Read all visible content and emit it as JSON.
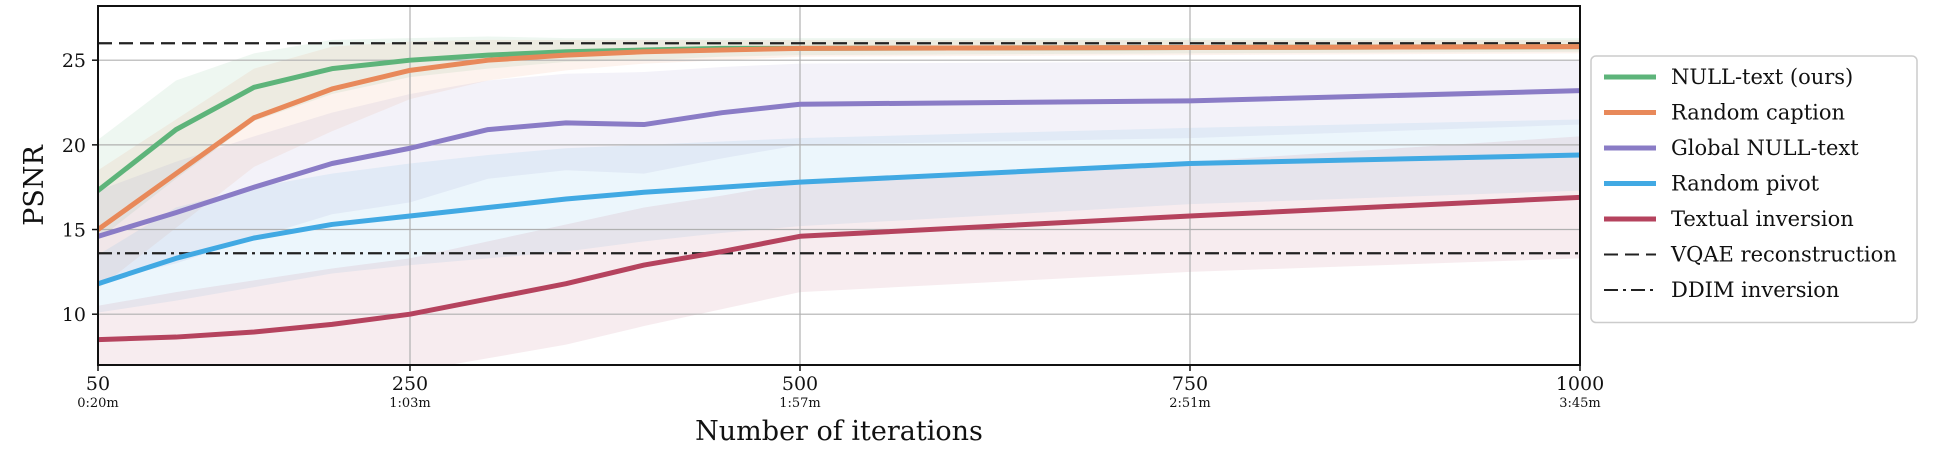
{
  "chart_data": {
    "type": "line",
    "xlabel": "Number of iterations",
    "ylabel": "PSNR",
    "xlim": [
      50,
      1000
    ],
    "ylim": [
      7,
      28.2
    ],
    "grid": true,
    "legend_position": "right-outside",
    "x_ticks": [
      {
        "value": 50,
        "label": "50",
        "sub": "0:20m"
      },
      {
        "value": 250,
        "label": "250",
        "sub": "1:03m"
      },
      {
        "value": 500,
        "label": "500",
        "sub": "1:57m"
      },
      {
        "value": 750,
        "label": "750",
        "sub": "2:51m"
      },
      {
        "value": 1000,
        "label": "1000",
        "sub": "3:45m"
      }
    ],
    "y_ticks": [
      {
        "value": 10,
        "label": "10"
      },
      {
        "value": 15,
        "label": "15"
      },
      {
        "value": 20,
        "label": "20"
      },
      {
        "value": 25,
        "label": "25"
      }
    ],
    "series": [
      {
        "name": "NULL-text (ours)",
        "color": "#5db47a",
        "x": [
          50,
          100,
          150,
          200,
          250,
          300,
          350,
          400,
          450,
          500,
          750,
          1000
        ],
        "y": [
          17.3,
          20.9,
          23.4,
          24.5,
          25.0,
          25.3,
          25.5,
          25.6,
          25.7,
          25.7,
          25.75,
          25.8
        ],
        "band_upper": [
          20.3,
          23.8,
          25.4,
          26.2,
          26.3,
          26.4,
          26.3,
          26.3,
          26.3,
          26.3,
          26.3,
          26.3
        ],
        "band_lower": [
          14.4,
          18.0,
          21.4,
          23.0,
          24.0,
          24.5,
          24.9,
          25.0,
          25.2,
          25.3,
          25.4,
          25.5
        ]
      },
      {
        "name": "Random caption",
        "color": "#e8895a",
        "x": [
          50,
          100,
          150,
          200,
          250,
          300,
          350,
          400,
          450,
          500,
          750,
          1000
        ],
        "y": [
          15.0,
          18.3,
          21.6,
          23.3,
          24.4,
          25.0,
          25.3,
          25.5,
          25.6,
          25.7,
          25.75,
          25.8
        ],
        "band_upper": [
          18.5,
          21.5,
          24.5,
          25.8,
          26.1,
          26.2,
          26.2,
          26.2,
          26.2,
          26.2,
          26.2,
          26.2
        ],
        "band_lower": [
          11.5,
          15.1,
          18.7,
          20.8,
          22.7,
          23.8,
          24.4,
          24.8,
          25.0,
          25.2,
          25.3,
          25.4
        ]
      },
      {
        "name": "Global NULL-text",
        "color": "#8a7cc6",
        "x": [
          50,
          100,
          150,
          200,
          250,
          300,
          350,
          400,
          450,
          500,
          750,
          1000
        ],
        "y": [
          14.6,
          16.0,
          17.5,
          18.9,
          19.8,
          20.9,
          21.3,
          21.2,
          21.9,
          22.4,
          22.6,
          23.2
        ],
        "band_upper": [
          17.3,
          19.0,
          20.5,
          21.9,
          23.0,
          23.8,
          24.2,
          24.3,
          24.6,
          24.8,
          24.9,
          25.0
        ],
        "band_lower": [
          11.9,
          13.0,
          14.5,
          15.9,
          16.6,
          18.0,
          18.5,
          18.3,
          19.2,
          20.0,
          20.4,
          21.2
        ]
      },
      {
        "name": "Random pivot",
        "color": "#41a9e3",
        "x": [
          50,
          100,
          150,
          200,
          250,
          300,
          350,
          400,
          450,
          500,
          750,
          1000
        ],
        "y": [
          11.8,
          13.3,
          14.5,
          15.3,
          15.8,
          16.3,
          16.8,
          17.2,
          17.5,
          17.8,
          18.9,
          19.4
        ],
        "band_upper": [
          13.5,
          16.3,
          17.5,
          18.3,
          18.9,
          19.4,
          19.8,
          20.0,
          20.2,
          20.4,
          21.0,
          21.5
        ],
        "band_lower": [
          10.1,
          10.8,
          11.6,
          12.4,
          12.9,
          13.3,
          13.7,
          14.3,
          14.8,
          15.2,
          16.5,
          17.3
        ]
      },
      {
        "name": "Textual inversion",
        "color": "#b5435e",
        "x": [
          50,
          100,
          150,
          200,
          250,
          300,
          350,
          400,
          450,
          500,
          750,
          1000
        ],
        "y": [
          8.5,
          8.65,
          8.95,
          9.4,
          10.0,
          10.9,
          11.8,
          12.9,
          13.7,
          14.6,
          15.8,
          16.9
        ],
        "band_upper": [
          10.5,
          11.3,
          12.0,
          12.7,
          13.3,
          14.3,
          15.3,
          16.3,
          17.0,
          17.8,
          19.0,
          20.5
        ],
        "band_lower": [
          6.5,
          6.5,
          6.5,
          6.5,
          6.6,
          7.4,
          8.2,
          9.3,
          10.3,
          11.3,
          12.5,
          13.3
        ]
      }
    ],
    "reference_lines": [
      {
        "name": "VQAE reconstruction",
        "y": 26.0,
        "style": "dashed",
        "color": "#222222"
      },
      {
        "name": "DDIM inversion",
        "y": 13.6,
        "style": "dash-dot",
        "color": "#222222"
      }
    ]
  }
}
